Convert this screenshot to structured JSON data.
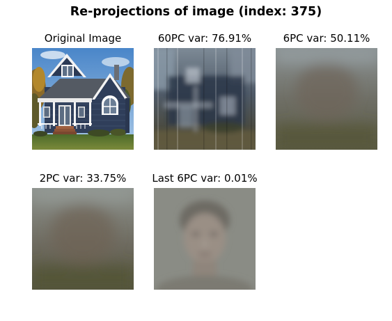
{
  "figure": {
    "title": "Re-projections of image (index: 375)",
    "panels": [
      {
        "title": "Original Image",
        "content": "Photo of a two-story dark blue house with white trim, gray roof, white porch, arched window, and front lawn under a blue sky with autumn trees"
      },
      {
        "title": "60PC var: 76.91%",
        "content": "Blurry dark reconstruction of the house with bluish tones and vertical streaks"
      },
      {
        "title": "6PC var: 50.11%",
        "content": "Very blurred gray-brown reconstruction with a faint head-like silhouette"
      },
      {
        "title": "2PC var: 33.75%",
        "content": "Very blurred gray-brown reconstruction with a faint rounded silhouette"
      },
      {
        "title": "Last 6PC var: 0.01%",
        "content": "Soft, faded image resembling an average human face on gray"
      }
    ]
  }
}
